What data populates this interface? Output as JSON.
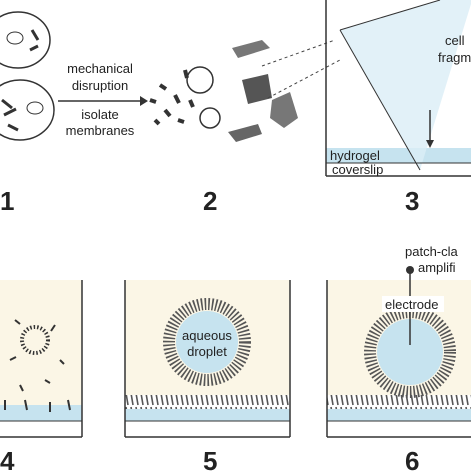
{
  "step_labels": {
    "mechanical": "mechanical",
    "disruption": "disruption",
    "isolate": "isolate",
    "membranes": "membranes"
  },
  "panel_3": {
    "cell": "cell",
    "fragments": "fragmen",
    "hydrogel": "hydrogel",
    "coverslip": "coverslip"
  },
  "panel_5": {
    "aqueous": "aqueous",
    "droplet": "droplet"
  },
  "panel_6": {
    "patch_clamp": "patch-cla",
    "amplifier": "amplifi",
    "electrode": "electrode"
  },
  "panel_numbers": [
    "1",
    "2",
    "3",
    "4",
    "5",
    "6"
  ]
}
